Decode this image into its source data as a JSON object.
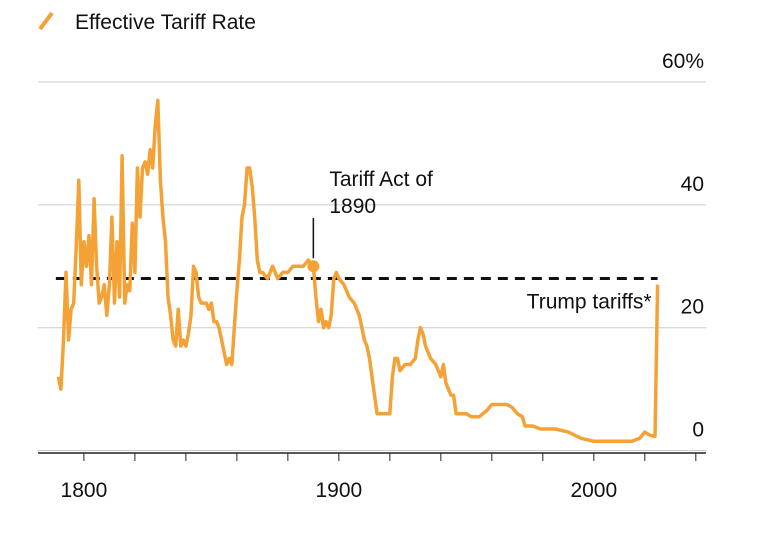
{
  "chart_data": {
    "type": "line",
    "series": [
      {
        "name": "Effective Tariff Rate",
        "color": "#f4a236",
        "x": [
          1790,
          1791,
          1792,
          1793,
          1794,
          1795,
          1796,
          1797,
          1798,
          1799,
          1800,
          1801,
          1802,
          1803,
          1804,
          1805,
          1806,
          1807,
          1808,
          1809,
          1810,
          1811,
          1812,
          1813,
          1814,
          1815,
          1816,
          1817,
          1818,
          1819,
          1820,
          1821,
          1822,
          1823,
          1824,
          1825,
          1826,
          1827,
          1828,
          1829,
          1830,
          1831,
          1832,
          1833,
          1834,
          1835,
          1836,
          1837,
          1838,
          1839,
          1840,
          1841,
          1842,
          1843,
          1844,
          1845,
          1846,
          1847,
          1848,
          1849,
          1850,
          1851,
          1852,
          1853,
          1854,
          1855,
          1856,
          1857,
          1858,
          1859,
          1860,
          1861,
          1862,
          1863,
          1864,
          1865,
          1866,
          1867,
          1868,
          1869,
          1870,
          1872,
          1874,
          1876,
          1878,
          1880,
          1882,
          1884,
          1886,
          1888,
          1890,
          1891,
          1892,
          1893,
          1894,
          1895,
          1896,
          1897,
          1898,
          1899,
          1900,
          1902,
          1904,
          1906,
          1908,
          1910,
          1911,
          1912,
          1913,
          1914,
          1915,
          1916,
          1918,
          1920,
          1921,
          1922,
          1923,
          1924,
          1926,
          1928,
          1930,
          1931,
          1932,
          1933,
          1934,
          1935,
          1936,
          1938,
          1940,
          1941,
          1942,
          1944,
          1945,
          1946,
          1948,
          1950,
          1952,
          1955,
          1958,
          1960,
          1963,
          1966,
          1968,
          1970,
          1972,
          1973,
          1976,
          1979,
          1982,
          1985,
          1990,
          1995,
          2000,
          2005,
          2010,
          2015,
          2018,
          2019,
          2020,
          2022,
          2024,
          2025
        ],
        "values": [
          12,
          10,
          18,
          29,
          18,
          23,
          24,
          33,
          44,
          27,
          34,
          30,
          35,
          27,
          41,
          30,
          24,
          25,
          27,
          22,
          27,
          38,
          24,
          34,
          25,
          48,
          24,
          27,
          26,
          37,
          29,
          46,
          38,
          46,
          47,
          45,
          49,
          46,
          53,
          57,
          44,
          38,
          34,
          25,
          22,
          18,
          17,
          23,
          17,
          18,
          17,
          19,
          22,
          30,
          29,
          25,
          24,
          24,
          24,
          23,
          24,
          21,
          21,
          20,
          18,
          16,
          14,
          15,
          14,
          20,
          26,
          31,
          38,
          40,
          46,
          46,
          43,
          38,
          31,
          29,
          29,
          28,
          30,
          28,
          29,
          29,
          30,
          30,
          30,
          31,
          30,
          25,
          21,
          23,
          20,
          21,
          20,
          22,
          28,
          29,
          28,
          27,
          25,
          24,
          22,
          18,
          17,
          15,
          12,
          9,
          6,
          6,
          6,
          6,
          12,
          15,
          15,
          13,
          14,
          14,
          15,
          18,
          20,
          19,
          17,
          16,
          15,
          14,
          12,
          14,
          11,
          9,
          9,
          6,
          6,
          6,
          5.5,
          5.5,
          6.5,
          7.5,
          7.5,
          7.5,
          7,
          6,
          5.5,
          4,
          4,
          3.5,
          3.5,
          3.5,
          3,
          2,
          1.5,
          1.5,
          1.5,
          1.5,
          2,
          2.5,
          3,
          2.5,
          2.3,
          27
        ]
      }
    ],
    "xlim": [
      1782,
      2044
    ],
    "xticks": [
      1800,
      1900,
      2000
    ],
    "xminor_ticks": [
      1800,
      1820,
      1840,
      1860,
      1880,
      1900,
      1920,
      1940,
      1960,
      1980,
      2000,
      2020,
      2040
    ],
    "ylim": [
      -0.4,
      60
    ],
    "yticks": [
      0,
      20,
      40,
      {
        "value": 60,
        "label": "60%"
      }
    ],
    "grid": true,
    "reference_line": {
      "label": "Trump tariffs*",
      "value": 28,
      "xrange": [
        1789,
        2025
      ]
    },
    "annotations": [
      {
        "lines": [
          "Tariff Act of",
          "1890"
        ],
        "x": 1890,
        "y": 30
      }
    ]
  }
}
